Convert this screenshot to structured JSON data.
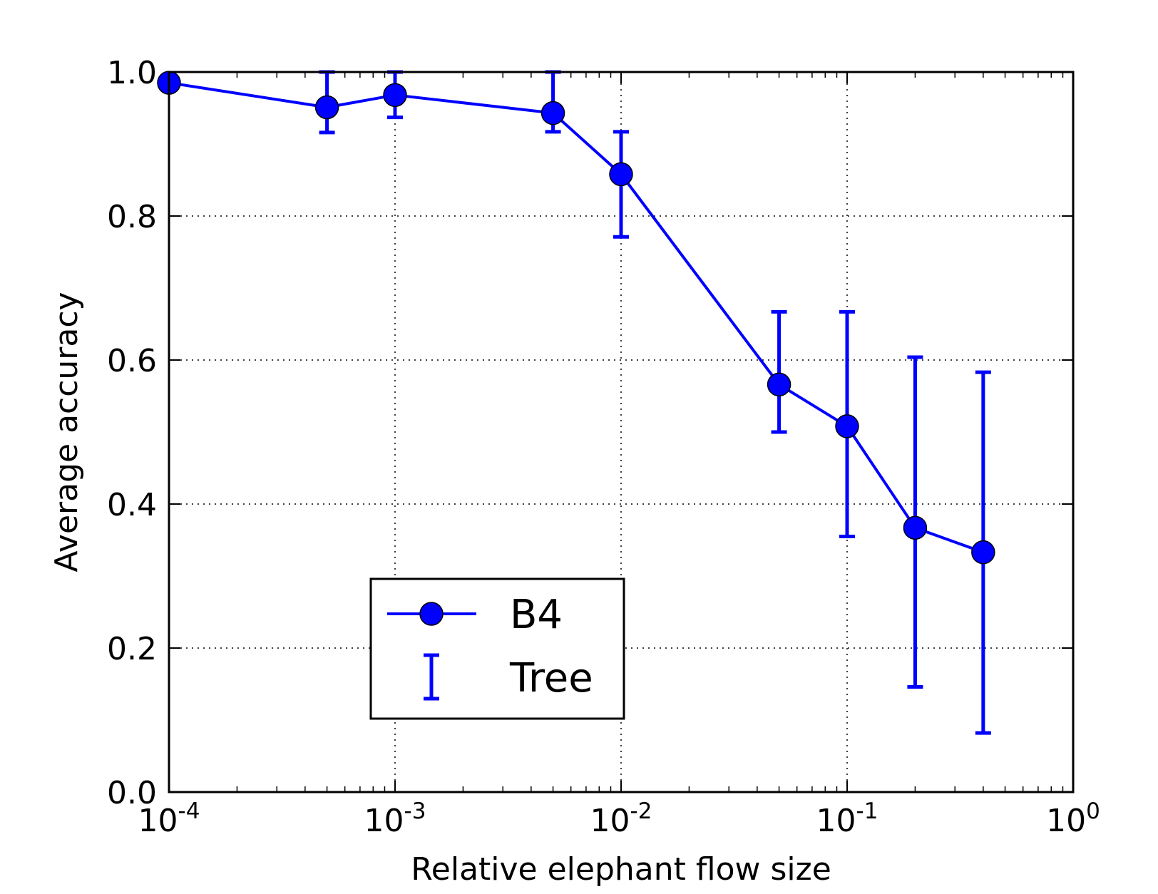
{
  "chart_data": {
    "type": "line",
    "title": "",
    "xlabel": "Relative elephant flow size",
    "ylabel": "Average accuracy",
    "xscale": "log",
    "xlim": [
      0.0001,
      1
    ],
    "ylim": [
      0.0,
      1.0
    ],
    "grid": true,
    "legend_placement": "lower-center",
    "x_ticks": [
      {
        "value": 0.0001,
        "base": "10",
        "exp": "-4"
      },
      {
        "value": 0.001,
        "base": "10",
        "exp": "-3"
      },
      {
        "value": 0.01,
        "base": "10",
        "exp": "-2"
      },
      {
        "value": 0.1,
        "base": "10",
        "exp": "-1"
      },
      {
        "value": 1,
        "base": "10",
        "exp": "0"
      }
    ],
    "y_ticks": [
      {
        "value": 0.0,
        "label": "0.0"
      },
      {
        "value": 0.2,
        "label": "0.2"
      },
      {
        "value": 0.4,
        "label": "0.4"
      },
      {
        "value": 0.6,
        "label": "0.6"
      },
      {
        "value": 0.8,
        "label": "0.8"
      },
      {
        "value": 1.0,
        "label": "1.0"
      }
    ],
    "series": [
      {
        "name": "B4",
        "color": "#0000ff",
        "marker": "circle",
        "x": [
          0.0001,
          0.0005,
          0.001,
          0.005,
          0.01,
          0.05,
          0.1,
          0.2,
          0.4
        ],
        "y": [
          0.985,
          0.951,
          0.968,
          0.943,
          0.858,
          0.566,
          0.508,
          0.367,
          0.333
        ]
      }
    ],
    "errorbars": {
      "name": "Tree",
      "color": "#0000ff",
      "x": [
        0.0001,
        0.0005,
        0.001,
        0.005,
        0.01,
        0.05,
        0.1,
        0.2,
        0.4
      ],
      "lower": [
        1.0,
        0.916,
        0.937,
        0.917,
        0.771,
        0.5,
        0.355,
        0.146,
        0.082
      ],
      "upper": [
        1.0,
        1.0,
        1.0,
        1.0,
        0.917,
        0.667,
        0.667,
        0.604,
        0.583
      ]
    }
  }
}
